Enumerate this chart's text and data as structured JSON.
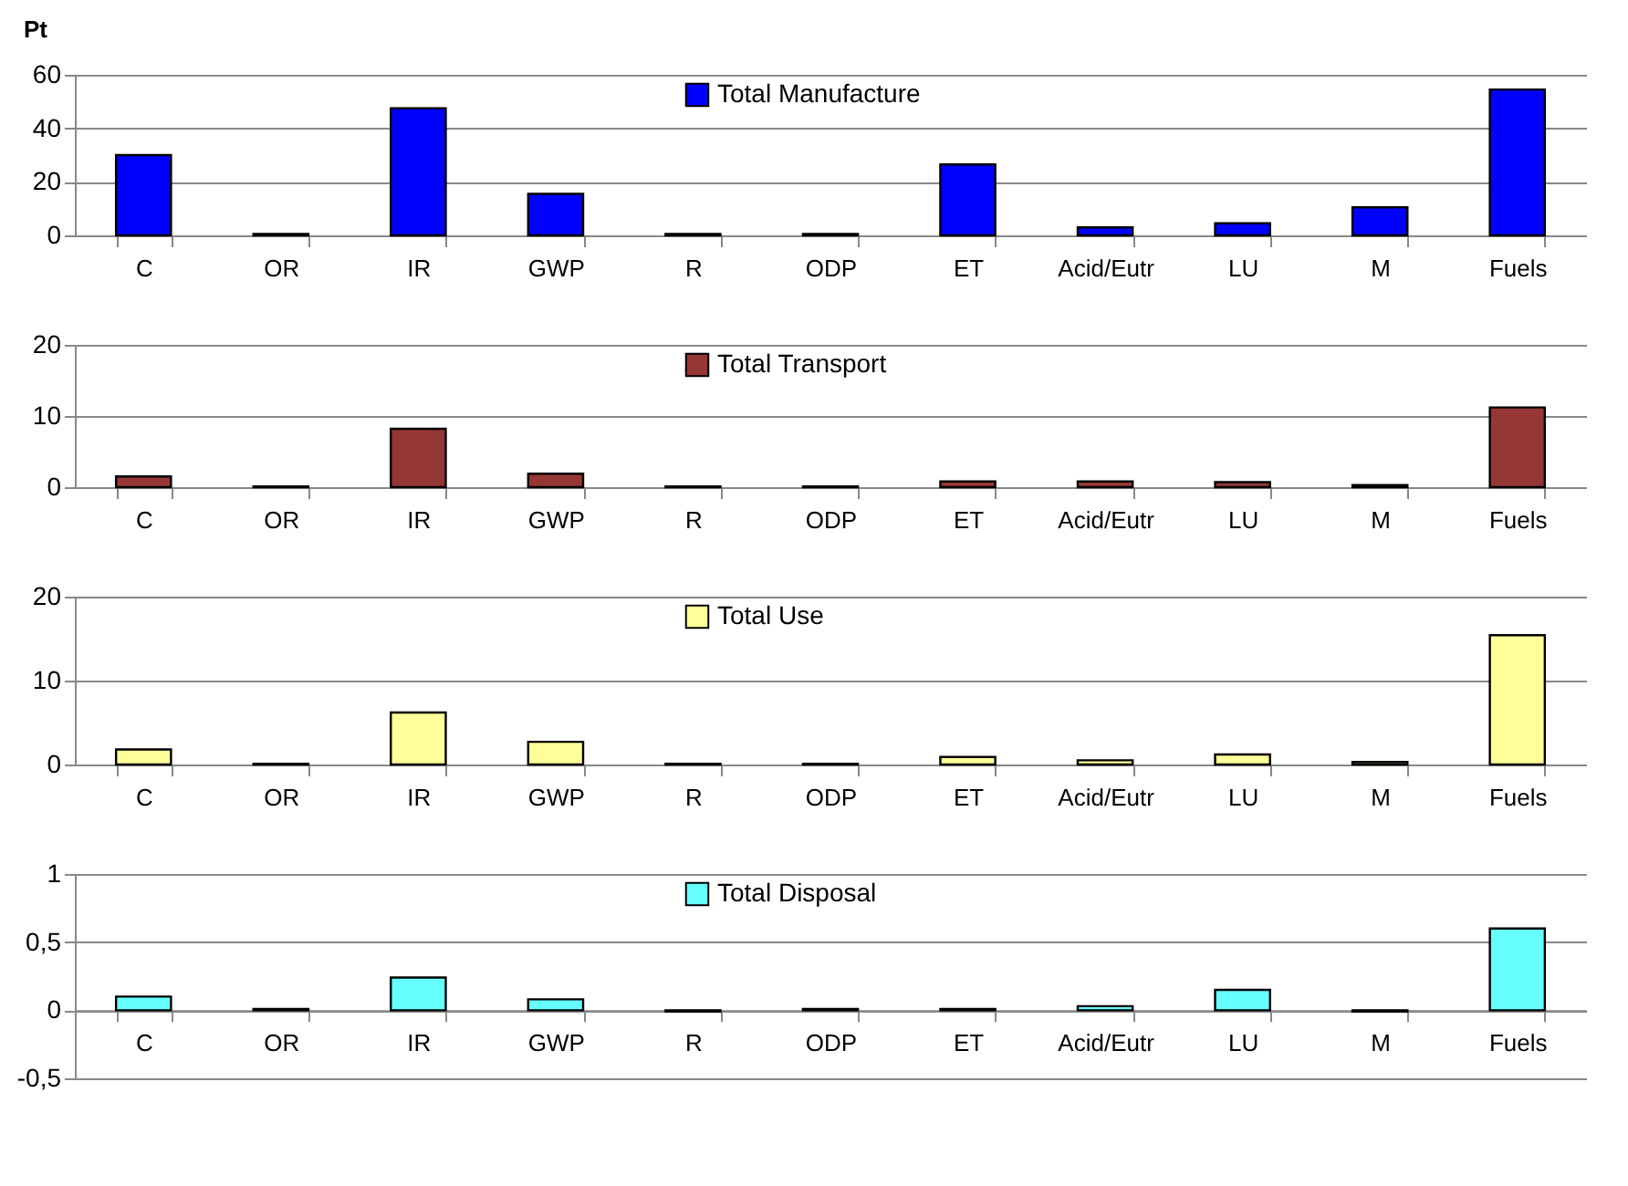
{
  "chart_data": [
    {
      "type": "bar",
      "ylabel": "Pt",
      "categories": [
        "C",
        "OR",
        "IR",
        "GWP",
        "R",
        "ODP",
        "ET",
        "Acid/Eutr",
        "LU",
        "M",
        "Fuels"
      ],
      "series": [
        {
          "name": "Total Manufacture",
          "color": "#0000ff",
          "values": [
            30,
            0.5,
            47.5,
            15.5,
            0.5,
            0.5,
            26.5,
            3,
            4.5,
            10.5,
            54.5
          ]
        }
      ],
      "ylim": [
        0,
        60
      ],
      "yticks": [
        0,
        20,
        40,
        60
      ],
      "grid": "y",
      "legend": "top"
    },
    {
      "type": "bar",
      "categories": [
        "C",
        "OR",
        "IR",
        "GWP",
        "R",
        "ODP",
        "ET",
        "Acid/Eutr",
        "LU",
        "M",
        "Fuels"
      ],
      "series": [
        {
          "name": "Total Transport",
          "color": "#953735",
          "values": [
            1.5,
            0.1,
            8.2,
            1.9,
            0.1,
            0.1,
            0.8,
            0.8,
            0.7,
            0.3,
            11.2
          ]
        }
      ],
      "ylim": [
        0,
        20
      ],
      "yticks": [
        0,
        10,
        20
      ],
      "grid": "y",
      "legend": "top"
    },
    {
      "type": "bar",
      "categories": [
        "C",
        "OR",
        "IR",
        "GWP",
        "R",
        "ODP",
        "ET",
        "Acid/Eutr",
        "LU",
        "M",
        "Fuels"
      ],
      "series": [
        {
          "name": "Total Use",
          "color": "#ffff99",
          "values": [
            1.8,
            0.1,
            6.2,
            2.7,
            0.1,
            0.1,
            0.9,
            0.5,
            1.2,
            0.3,
            15.4
          ]
        }
      ],
      "ylim": [
        0,
        20
      ],
      "yticks": [
        0,
        10,
        20
      ],
      "grid": "y",
      "legend": "top"
    },
    {
      "type": "bar",
      "categories": [
        "C",
        "OR",
        "IR",
        "GWP",
        "R",
        "ODP",
        "ET",
        "Acid/Eutr",
        "LU",
        "M",
        "Fuels"
      ],
      "series": [
        {
          "name": "Total Disposal",
          "color": "#66ffff",
          "values": [
            0.1,
            0.01,
            0.24,
            0.08,
            -0.01,
            0.01,
            0.01,
            0.03,
            0.15,
            -0.01,
            0.6
          ]
        }
      ],
      "ylim": [
        -0.5,
        1
      ],
      "yticks": [
        {
          "value": -0.5,
          "label": "-0,5"
        },
        0,
        {
          "value": 0.5,
          "label": "0,5"
        },
        1
      ],
      "grid": "y",
      "legend": "top"
    }
  ]
}
